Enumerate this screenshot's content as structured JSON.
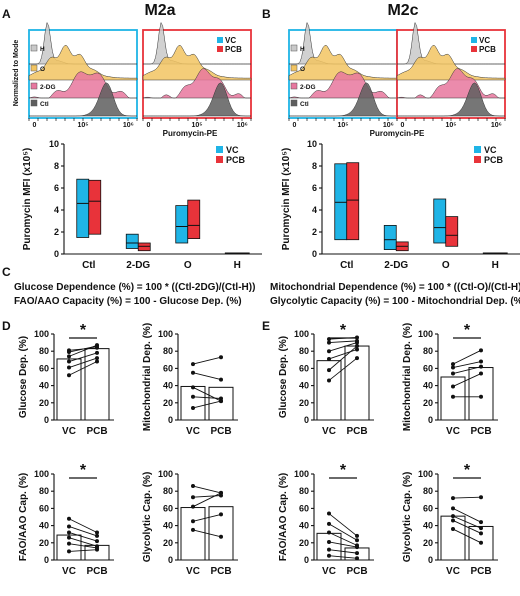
{
  "headers": {
    "left": "M2a",
    "right": "M2c"
  },
  "panel_letters": [
    "A",
    "B",
    "C",
    "D",
    "E"
  ],
  "colors": {
    "vc": "#1fb4e6",
    "pcb": "#e8333a",
    "H": "#c9c9c9",
    "O": "#f2c462",
    "2DG": "#e7779e",
    "Ctl": "#5e5e5e"
  },
  "flow": {
    "ylabel": "Normalized to Mode",
    "xlabel": "Puromycin-PE",
    "row_labels": [
      "H",
      "O",
      "2-DG",
      "Ctl"
    ],
    "legend": [
      "VC",
      "PCB"
    ],
    "xticks": [
      "0",
      "10⁵",
      "10⁶"
    ]
  },
  "formulas": {
    "glucose": "Glucose Dependence (%) = 100 * ((Ctl-2DG)/(Ctl-H))",
    "fao": "FAO/AAO Capacity (%) = 100 - Glucose Dep. (%)",
    "mito": "Mitochondrial Dependence (%) = 100 * ((Ctl-O)/(Ctl-H))",
    "glyco": "Glycolytic Capacity (%) = 100 - Mitochondrial Dep. (%)"
  },
  "chart_data": [
    {
      "id": "A-mfi",
      "type": "bar",
      "ylabel": "Puromycin MFI (x10⁵)",
      "categories": [
        "Ctl",
        "2-DG",
        "O",
        "H"
      ],
      "ylim": [
        0,
        10
      ],
      "yticks": [
        0,
        2,
        4,
        6,
        8,
        10
      ],
      "series": [
        {
          "name": "VC",
          "min": [
            1.5,
            0.5,
            1.0,
            0.0
          ],
          "mean": [
            4.6,
            1.0,
            2.5,
            0.05
          ],
          "max": [
            6.8,
            1.8,
            4.4,
            0.1
          ]
        },
        {
          "name": "PCB",
          "min": [
            1.8,
            0.3,
            1.4,
            0.0
          ],
          "mean": [
            4.8,
            0.7,
            2.6,
            0.05
          ],
          "max": [
            6.7,
            1.0,
            4.9,
            0.1
          ]
        }
      ]
    },
    {
      "id": "B-mfi",
      "type": "bar",
      "ylabel": "Puromycin MFI (x10⁵)",
      "categories": [
        "Ctl",
        "2-DG",
        "O",
        "H"
      ],
      "ylim": [
        0,
        10
      ],
      "yticks": [
        0,
        2,
        4,
        6,
        8,
        10
      ],
      "series": [
        {
          "name": "VC",
          "min": [
            1.3,
            0.4,
            1.0,
            0.0
          ],
          "mean": [
            4.7,
            1.3,
            2.4,
            0.05
          ],
          "max": [
            8.2,
            2.6,
            5.0,
            0.1
          ]
        },
        {
          "name": "PCB",
          "min": [
            1.3,
            0.3,
            0.7,
            0.0
          ],
          "mean": [
            4.9,
            0.7,
            1.7,
            0.05
          ],
          "max": [
            8.3,
            1.1,
            3.4,
            0.1
          ]
        }
      ]
    },
    {
      "id": "D-glucose",
      "type": "bar",
      "ylabel": "Glucose Dep. (%)",
      "categories": [
        "VC",
        "PCB"
      ],
      "ylim": [
        0,
        100
      ],
      "yticks": [
        0,
        20,
        40,
        60,
        80,
        100
      ],
      "values": [
        71,
        83
      ],
      "significance": "*",
      "paired": [
        [
          52,
          68
        ],
        [
          61,
          72
        ],
        [
          68,
          78
        ],
        [
          74,
          87
        ],
        [
          79,
          86
        ],
        [
          81,
          84
        ]
      ]
    },
    {
      "id": "D-mito",
      "type": "bar",
      "ylabel": "Mitochondrial Dep. (%)",
      "categories": [
        "VC",
        "PCB"
      ],
      "ylim": [
        0,
        100
      ],
      "yticks": [
        0,
        20,
        40,
        60,
        80,
        100
      ],
      "values": [
        39,
        38
      ],
      "significance": "",
      "paired": [
        [
          14,
          22
        ],
        [
          27,
          25
        ],
        [
          38,
          22
        ],
        [
          55,
          47
        ],
        [
          65,
          73
        ]
      ]
    },
    {
      "id": "D-fao",
      "type": "bar",
      "ylabel": "FAO/AAO Cap. (%)",
      "categories": [
        "VC",
        "PCB"
      ],
      "ylim": [
        0,
        100
      ],
      "yticks": [
        0,
        20,
        40,
        60,
        80,
        100
      ],
      "values": [
        29,
        17
      ],
      "significance": "*",
      "paired": [
        [
          10,
          12
        ],
        [
          19,
          14
        ],
        [
          26,
          16
        ],
        [
          32,
          22
        ],
        [
          39,
          28
        ],
        [
          48,
          32
        ]
      ]
    },
    {
      "id": "D-glyco",
      "type": "bar",
      "ylabel": "Glycolytic Cap. (%)",
      "categories": [
        "VC",
        "PCB"
      ],
      "ylim": [
        0,
        100
      ],
      "yticks": [
        0,
        20,
        40,
        60,
        80,
        100
      ],
      "values": [
        61,
        62
      ],
      "significance": "",
      "paired": [
        [
          35,
          27
        ],
        [
          45,
          53
        ],
        [
          62,
          78
        ],
        [
          73,
          75
        ],
        [
          86,
          78
        ]
      ]
    },
    {
      "id": "E-glucose",
      "type": "bar",
      "ylabel": "Glucose Dep. (%)",
      "categories": [
        "VC",
        "PCB"
      ],
      "ylim": [
        0,
        100
      ],
      "yticks": [
        0,
        20,
        40,
        60,
        80,
        100
      ],
      "values": [
        69,
        86
      ],
      "significance": "*",
      "paired": [
        [
          46,
          72
        ],
        [
          58,
          86
        ],
        [
          71,
          82
        ],
        [
          80,
          90
        ],
        [
          90,
          92
        ],
        [
          94,
          96
        ]
      ]
    },
    {
      "id": "E-mito",
      "type": "bar",
      "ylabel": "Mitochondrial Dep. (%)",
      "categories": [
        "VC",
        "PCB"
      ],
      "ylim": [
        0,
        100
      ],
      "yticks": [
        0,
        20,
        40,
        60,
        80,
        100
      ],
      "values": [
        50,
        61
      ],
      "significance": "*",
      "paired": [
        [
          27,
          27
        ],
        [
          39,
          54
        ],
        [
          54,
          62
        ],
        [
          61,
          68
        ],
        [
          65,
          81
        ]
      ]
    },
    {
      "id": "E-fao",
      "type": "bar",
      "ylabel": "FAO/AAO Cap. (%)",
      "categories": [
        "VC",
        "PCB"
      ],
      "ylim": [
        0,
        100
      ],
      "yticks": [
        0,
        20,
        40,
        60,
        80,
        100
      ],
      "values": [
        31,
        14
      ],
      "significance": "*",
      "paired": [
        [
          5,
          2
        ],
        [
          12,
          8
        ],
        [
          21,
          15
        ],
        [
          32,
          17
        ],
        [
          42,
          23
        ],
        [
          54,
          28
        ]
      ]
    },
    {
      "id": "E-glyco",
      "type": "bar",
      "ylabel": "Glycolytic Cap. (%)",
      "categories": [
        "VC",
        "PCB"
      ],
      "ylim": [
        0,
        100
      ],
      "yticks": [
        0,
        20,
        40,
        60,
        80,
        100
      ],
      "values": [
        51,
        39
      ],
      "significance": "*",
      "paired": [
        [
          36,
          20
        ],
        [
          46,
          31
        ],
        [
          51,
          37
        ],
        [
          60,
          44
        ],
        [
          72,
          73
        ]
      ]
    }
  ]
}
